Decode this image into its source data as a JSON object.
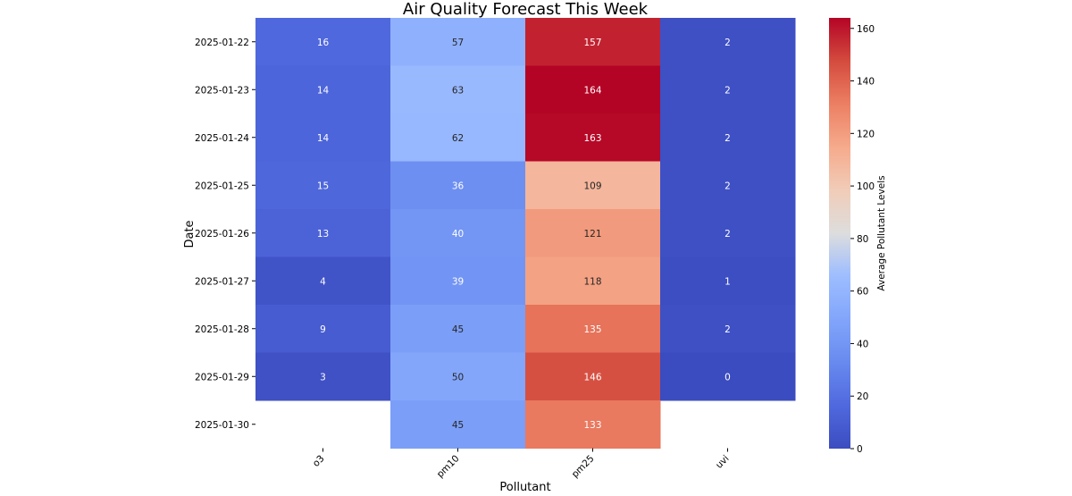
{
  "chart_data": {
    "type": "heatmap",
    "title": "Air Quality Forecast This Week",
    "xlabel": "Pollutant",
    "ylabel": "Date",
    "x_categories": [
      "o3",
      "pm10",
      "pm25",
      "uvi"
    ],
    "y_categories": [
      "2025-01-22",
      "2025-01-23",
      "2025-01-24",
      "2025-01-25",
      "2025-01-26",
      "2025-01-27",
      "2025-01-28",
      "2025-01-29",
      "2025-01-30"
    ],
    "values": [
      [
        16,
        57,
        157,
        2
      ],
      [
        14,
        63,
        164,
        2
      ],
      [
        14,
        62,
        163,
        2
      ],
      [
        15,
        36,
        109,
        2
      ],
      [
        13,
        40,
        121,
        2
      ],
      [
        4,
        39,
        118,
        1
      ],
      [
        9,
        45,
        135,
        2
      ],
      [
        3,
        50,
        146,
        0
      ],
      [
        null,
        45,
        133,
        null
      ]
    ],
    "colormap": "coolwarm",
    "vmin": 0,
    "vmax": 164,
    "colorbar": {
      "label": "Average Pollutant Levels",
      "ticks": [
        0,
        20,
        40,
        60,
        80,
        100,
        120,
        140,
        160
      ]
    },
    "annotations": true,
    "grid": false
  }
}
